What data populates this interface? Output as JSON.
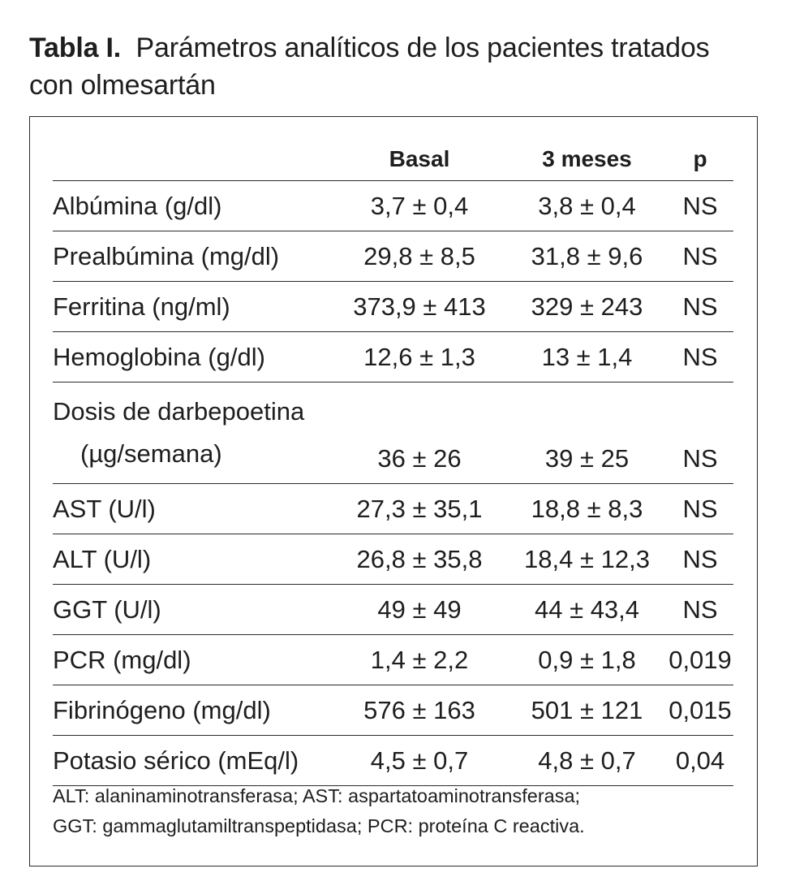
{
  "title": {
    "label": "Tabla I.",
    "text": "Parámetros analíticos de los pacientes tratados con olmesartán"
  },
  "table": {
    "headers": [
      "",
      "Basal",
      "3 meses",
      "p"
    ],
    "rows": [
      {
        "param": "Albúmina (g/dl)",
        "basal": "3,7 ± 0,4",
        "m3": "3,8 ± 0,4",
        "p": "NS"
      },
      {
        "param": "Prealbúmina (mg/dl)",
        "basal": "29,8 ± 8,5",
        "m3": "31,8 ± 9,6",
        "p": "NS"
      },
      {
        "param": "Ferritina (ng/ml)",
        "basal": "373,9 ± 413",
        "m3": "329 ± 243",
        "p": "NS"
      },
      {
        "param": "Hemoglobina (g/dl)",
        "basal": "12,6 ± 1,3",
        "m3": "13 ± 1,4",
        "p": "NS"
      },
      {
        "param": "Dosis de darbepoetina",
        "param2": "(µg/semana)",
        "basal": "36 ± 26",
        "m3": "39 ± 25",
        "p": "NS"
      },
      {
        "param": "AST (U/l)",
        "basal": "27,3 ± 35,1",
        "m3": "18,8 ± 8,3",
        "p": "NS"
      },
      {
        "param": "ALT (U/l)",
        "basal": "26,8 ± 35,8",
        "m3": "18,4 ± 12,3",
        "p": "NS"
      },
      {
        "param": "GGT (U/l)",
        "basal": "49 ± 49",
        "m3": "44 ± 43,4",
        "p": "NS"
      },
      {
        "param": "PCR (mg/dl)",
        "basal": "1,4 ± 2,2",
        "m3": "0,9 ± 1,8",
        "p": "0,019"
      },
      {
        "param": "Fibrinógeno (mg/dl)",
        "basal": "576 ± 163",
        "m3": "501 ± 121",
        "p": "0,015"
      },
      {
        "param": "Potasio sérico (mEq/l)",
        "basal": "4,5 ± 0,7",
        "m3": "4,8 ± 0,7",
        "p": "0,04"
      }
    ]
  },
  "footnote": {
    "line1": "ALT: alaninaminotransferasa; AST: aspartatoaminotransferasa;",
    "line2": "GGT: gammaglutamiltranspeptidasa; PCR: proteína C reactiva."
  }
}
